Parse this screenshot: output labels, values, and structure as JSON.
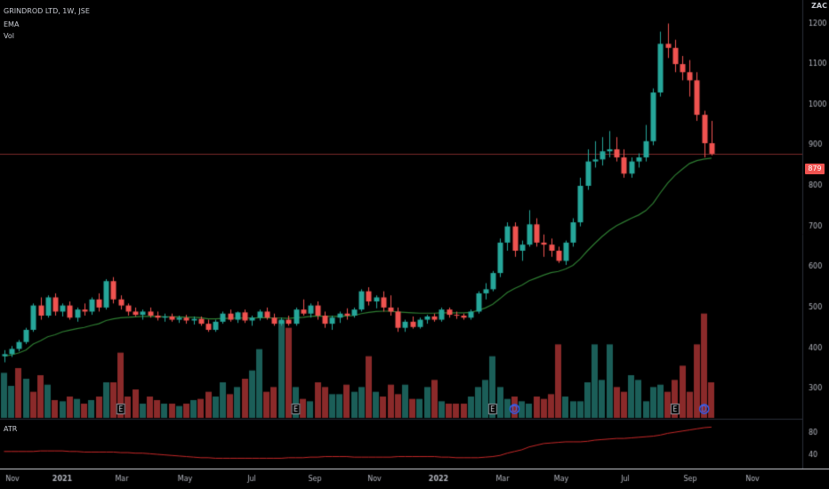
{
  "header": {
    "symbol_line": "GRINDROD LTD, 1W, JSE",
    "indicator_1": "EMA",
    "indicator_2": "Vol",
    "atr_label": "ATR"
  },
  "currency": "ZAC",
  "last_price_label": "879",
  "colors": {
    "up": "#26a69a",
    "down": "#ef5350",
    "vol_up": "#1b5e58",
    "vol_down": "#8a2a2a",
    "ema": "#2e7d32",
    "atr": "#c62828",
    "price_line": "#7a2a2a"
  },
  "chart_data": {
    "type": "candlestick",
    "title": "GRINDROD LTD, 1W, JSE",
    "series": [
      {
        "name": "EMA",
        "values": []
      },
      {
        "name": "Vol",
        "values": []
      },
      {
        "name": "ATR",
        "values": []
      }
    ],
    "price_axis": {
      "ticks": [
        1200,
        1100,
        1000,
        900,
        800,
        700,
        600,
        500,
        400,
        300
      ],
      "ylim": [
        228,
        1258
      ]
    },
    "atr_axis": {
      "ticks": [
        80,
        40
      ],
      "ylim": [
        20,
        100
      ]
    },
    "x_ticks": [
      "Nov",
      "2021",
      "Mar",
      "May",
      "Jul",
      "Sep",
      "Nov",
      "2022",
      "Mar",
      "May",
      "Jul",
      "Sep",
      "Nov"
    ],
    "last_price": 879,
    "candles": [
      [
        380,
        395,
        365,
        385
      ],
      [
        385,
        405,
        378,
        398
      ],
      [
        398,
        420,
        392,
        415
      ],
      [
        415,
        450,
        410,
        445
      ],
      [
        445,
        510,
        440,
        505
      ],
      [
        505,
        525,
        470,
        480
      ],
      [
        480,
        530,
        475,
        525
      ],
      [
        525,
        535,
        480,
        490
      ],
      [
        490,
        510,
        478,
        505
      ],
      [
        505,
        515,
        470,
        475
      ],
      [
        475,
        500,
        465,
        495
      ],
      [
        495,
        510,
        480,
        490
      ],
      [
        490,
        525,
        482,
        520
      ],
      [
        520,
        535,
        490,
        500
      ],
      [
        500,
        570,
        495,
        565
      ],
      [
        565,
        575,
        510,
        520
      ],
      [
        520,
        530,
        495,
        505
      ],
      [
        505,
        510,
        480,
        490
      ],
      [
        490,
        500,
        478,
        482
      ],
      [
        482,
        495,
        470,
        490
      ],
      [
        490,
        500,
        475,
        480
      ],
      [
        480,
        490,
        468,
        475
      ],
      [
        475,
        485,
        465,
        478
      ],
      [
        478,
        485,
        465,
        470
      ],
      [
        470,
        480,
        462,
        475
      ],
      [
        475,
        482,
        460,
        468
      ],
      [
        468,
        478,
        458,
        472
      ],
      [
        472,
        478,
        455,
        460
      ],
      [
        460,
        470,
        440,
        445
      ],
      [
        445,
        470,
        440,
        465
      ],
      [
        465,
        490,
        460,
        485
      ],
      [
        485,
        495,
        465,
        470
      ],
      [
        470,
        490,
        462,
        488
      ],
      [
        488,
        495,
        462,
        468
      ],
      [
        468,
        480,
        455,
        475
      ],
      [
        475,
        495,
        468,
        490
      ],
      [
        490,
        500,
        470,
        475
      ],
      [
        475,
        485,
        455,
        460
      ],
      [
        460,
        475,
        455,
        470
      ],
      [
        470,
        480,
        455,
        460
      ],
      [
        460,
        500,
        455,
        495
      ],
      [
        495,
        520,
        480,
        485
      ],
      [
        485,
        510,
        475,
        505
      ],
      [
        505,
        515,
        470,
        480
      ],
      [
        480,
        490,
        450,
        460
      ],
      [
        460,
        480,
        445,
        475
      ],
      [
        475,
        490,
        462,
        485
      ],
      [
        485,
        498,
        470,
        480
      ],
      [
        480,
        500,
        475,
        495
      ],
      [
        495,
        545,
        490,
        540
      ],
      [
        540,
        550,
        505,
        515
      ],
      [
        515,
        530,
        498,
        525
      ],
      [
        525,
        540,
        490,
        500
      ],
      [
        500,
        530,
        480,
        490
      ],
      [
        490,
        500,
        440,
        450
      ],
      [
        450,
        470,
        440,
        465
      ],
      [
        465,
        478,
        448,
        452
      ],
      [
        452,
        475,
        448,
        470
      ],
      [
        470,
        482,
        460,
        478
      ],
      [
        478,
        485,
        465,
        470
      ],
      [
        470,
        500,
        465,
        495
      ],
      [
        495,
        500,
        475,
        482
      ],
      [
        482,
        490,
        472,
        480
      ],
      [
        480,
        485,
        470,
        475
      ],
      [
        475,
        495,
        470,
        490
      ],
      [
        490,
        540,
        485,
        535
      ],
      [
        535,
        560,
        520,
        545
      ],
      [
        545,
        590,
        540,
        585
      ],
      [
        585,
        670,
        575,
        660
      ],
      [
        660,
        710,
        640,
        700
      ],
      [
        700,
        710,
        625,
        640
      ],
      [
        640,
        665,
        615,
        655
      ],
      [
        655,
        740,
        650,
        705
      ],
      [
        705,
        720,
        650,
        660
      ],
      [
        660,
        680,
        625,
        655
      ],
      [
        655,
        670,
        625,
        640
      ],
      [
        640,
        650,
        610,
        615
      ],
      [
        615,
        665,
        605,
        660
      ],
      [
        660,
        720,
        650,
        710
      ],
      [
        710,
        820,
        700,
        800
      ],
      [
        800,
        890,
        790,
        860
      ],
      [
        860,
        910,
        845,
        865
      ],
      [
        865,
        920,
        850,
        885
      ],
      [
        885,
        935,
        870,
        890
      ],
      [
        890,
        920,
        860,
        870
      ],
      [
        870,
        890,
        820,
        830
      ],
      [
        830,
        870,
        820,
        860
      ],
      [
        860,
        880,
        845,
        870
      ],
      [
        870,
        950,
        860,
        910
      ],
      [
        910,
        1040,
        900,
        1030
      ],
      [
        1030,
        1180,
        1020,
        1150
      ],
      [
        1150,
        1200,
        1115,
        1140
      ],
      [
        1140,
        1160,
        1080,
        1100
      ],
      [
        1100,
        1120,
        1060,
        1080
      ],
      [
        1080,
        1110,
        1020,
        1060
      ],
      [
        1060,
        1080,
        960,
        975
      ],
      [
        975,
        985,
        870,
        905
      ],
      [
        905,
        960,
        875,
        879
      ]
    ],
    "ema": [
      380,
      383,
      388,
      395,
      410,
      418,
      428,
      433,
      440,
      444,
      448,
      451,
      456,
      460,
      468,
      472,
      475,
      476,
      477,
      478,
      478,
      478,
      477,
      477,
      477,
      476,
      476,
      475,
      472,
      472,
      473,
      473,
      474,
      474,
      474,
      475,
      475,
      474,
      474,
      473,
      475,
      476,
      478,
      479,
      478,
      478,
      478,
      479,
      480,
      485,
      488,
      490,
      491,
      491,
      489,
      488,
      487,
      486,
      486,
      486,
      487,
      487,
      487,
      487,
      488,
      493,
      499,
      508,
      522,
      537,
      547,
      555,
      566,
      573,
      580,
      586,
      589,
      595,
      604,
      620,
      640,
      658,
      675,
      690,
      702,
      711,
      720,
      728,
      739,
      757,
      783,
      807,
      826,
      841,
      855,
      862,
      866,
      868
    ],
    "volume": [
      38,
      27,
      42,
      33,
      22,
      36,
      28,
      15,
      14,
      18,
      16,
      12,
      15,
      18,
      30,
      30,
      55,
      18,
      24,
      12,
      18,
      15,
      12,
      12,
      10,
      12,
      15,
      16,
      22,
      18,
      30,
      20,
      26,
      33,
      40,
      58,
      22,
      26,
      82,
      76,
      26,
      16,
      14,
      30,
      26,
      20,
      20,
      28,
      22,
      26,
      52,
      22,
      18,
      28,
      20,
      28,
      16,
      16,
      26,
      32,
      14,
      12,
      12,
      12,
      18,
      26,
      32,
      52,
      26,
      16,
      18,
      14,
      12,
      18,
      16,
      20,
      62,
      18,
      14,
      14,
      30,
      62,
      32,
      62,
      26,
      22,
      36,
      32,
      14,
      26,
      28,
      22,
      32,
      44,
      22,
      62,
      88,
      30
    ],
    "volume_up": [
      true,
      true,
      false,
      true,
      false,
      false,
      true,
      false,
      true,
      false,
      true,
      false,
      true,
      false,
      true,
      false,
      false,
      false,
      false,
      true,
      false,
      false,
      true,
      false,
      true,
      false,
      true,
      false,
      false,
      true,
      true,
      false,
      true,
      false,
      true,
      true,
      false,
      false,
      true,
      false,
      true,
      false,
      true,
      false,
      false,
      true,
      true,
      false,
      true,
      true,
      false,
      true,
      false,
      false,
      false,
      true,
      false,
      true,
      true,
      false,
      true,
      false,
      false,
      false,
      true,
      true,
      true,
      true,
      true,
      true,
      false,
      true,
      true,
      false,
      false,
      false,
      false,
      true,
      true,
      true,
      true,
      true,
      true,
      true,
      false,
      false,
      true,
      true,
      true,
      true,
      true,
      false,
      false,
      false,
      false,
      false,
      false,
      false
    ],
    "atr": [
      47,
      47,
      47,
      47,
      47,
      48,
      48,
      48,
      48,
      47,
      47,
      46,
      46,
      46,
      46,
      46,
      45,
      45,
      44,
      44,
      43,
      42,
      41,
      40,
      39,
      38,
      37,
      36,
      36,
      35,
      35,
      35,
      35,
      35,
      35,
      35,
      35,
      35,
      35,
      36,
      36,
      36,
      37,
      37,
      38,
      38,
      38,
      38,
      37,
      37,
      37,
      37,
      37,
      37,
      38,
      38,
      38,
      38,
      38,
      38,
      37,
      37,
      36,
      36,
      36,
      36,
      37,
      38,
      40,
      44,
      47,
      50,
      55,
      58,
      61,
      62,
      63,
      64,
      64,
      64,
      65,
      67,
      68,
      69,
      70,
      70,
      71,
      72,
      73,
      74,
      76,
      79,
      81,
      83,
      85,
      87,
      89,
      90
    ]
  }
}
